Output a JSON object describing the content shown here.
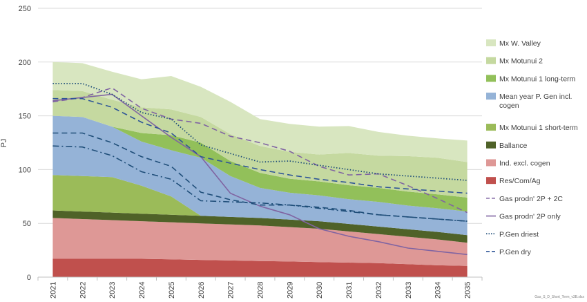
{
  "chart_data": {
    "type": "area",
    "x": [
      2021,
      2022,
      2023,
      2024,
      2025,
      2026,
      2027,
      2028,
      2029,
      2030,
      2031,
      2032,
      2033,
      2034,
      2035
    ],
    "xlabels": [
      "2021",
      "2022",
      "2023",
      "2024",
      "2025",
      "2026",
      "2027",
      "2028",
      "2029",
      "2030",
      "2031",
      "2032",
      "2033",
      "2034",
      "2035"
    ],
    "ylabel": "PJ",
    "ylim": [
      0,
      250
    ],
    "yticks": [
      "0",
      "50",
      "100",
      "150",
      "200",
      "250"
    ],
    "grid": "horizontal",
    "legend_position": "right",
    "stacked_series": [
      {
        "name": "Res/Com/Ag",
        "color": "#c0504d",
        "values": [
          17,
          17,
          17,
          17,
          16.5,
          16,
          15.5,
          15,
          14.5,
          14,
          13.5,
          13,
          12,
          11,
          10.5
        ]
      },
      {
        "name": "Ind. excl. cogen",
        "color": "#de9896",
        "values": [
          38,
          37,
          36,
          35,
          34.5,
          34,
          33.5,
          33,
          32,
          31,
          29,
          27,
          25.5,
          24,
          21.5
        ]
      },
      {
        "name": "Ballance",
        "color": "#4f6228",
        "values": [
          7,
          7,
          7,
          7,
          7,
          7,
          7,
          7,
          7,
          7,
          7,
          7,
          7,
          7,
          7
        ]
      },
      {
        "name": "Mx Motunui 1 short-term",
        "color": "#9bbb59",
        "values": [
          33,
          33,
          33,
          26,
          17,
          0,
          0,
          0,
          0,
          0,
          0,
          0,
          0,
          0,
          0
        ]
      },
      {
        "name": "Mean year P. Gen incl. cogen",
        "color": "#95b3d7",
        "values": [
          55,
          55,
          47,
          41,
          43,
          54,
          38,
          28,
          25,
          24,
          23,
          23,
          22,
          22,
          22
        ]
      },
      {
        "name": "Mx Motunui 1 long-term",
        "color": "#92c05a",
        "values": [
          0,
          0,
          0,
          8,
          14,
          14,
          14,
          14,
          13,
          13,
          13,
          13,
          13,
          13,
          13
        ]
      },
      {
        "name": "Mx Motunui 2",
        "color": "#c5d9a0",
        "values": [
          24,
          24,
          25,
          24,
          24,
          24,
          25,
          25,
          25,
          25,
          30,
          30,
          33,
          34,
          33
        ]
      },
      {
        "name": "Mx W. Valley",
        "color": "#d8e6c0",
        "values": [
          26,
          26,
          26,
          26,
          31,
          28,
          30,
          25,
          26,
          26,
          25,
          22,
          19,
          18,
          20
        ]
      }
    ],
    "line_series": [
      {
        "name": "Gas prodn' 2P + 2C",
        "color": "#8064a2",
        "style": "dashed",
        "values": [
          163,
          167,
          176,
          157,
          147,
          143,
          131,
          125,
          117,
          103,
          95,
          96,
          85,
          73,
          60
        ]
      },
      {
        "name": "Gas prodn' 2P only",
        "color": "#8064a2",
        "style": "solid",
        "values": [
          164,
          167,
          170,
          150,
          130,
          112,
          78,
          66,
          58,
          45,
          38,
          33,
          27,
          24,
          21
        ]
      },
      {
        "name": "P.Gen driest",
        "color": "#1f4e79",
        "style": "dotted",
        "values": [
          180,
          180,
          170,
          153,
          147,
          123,
          115,
          107,
          108,
          104,
          100,
          96,
          94,
          92,
          90
        ]
      },
      {
        "name": "P.Gen dry",
        "color": "#2e5597",
        "style": "dashed",
        "values": [
          166,
          166,
          158,
          144,
          134,
          112,
          106,
          100,
          95,
          91,
          88,
          84,
          82,
          80,
          78
        ]
      },
      {
        "name": "",
        "color": "#1f4e79",
        "style": "dashed",
        "values": [
          134,
          134,
          125,
          112,
          103,
          79,
          72,
          67,
          67,
          65,
          62,
          58,
          56,
          54,
          52
        ]
      },
      {
        "name": "",
        "color": "#1f4e79",
        "style": "dashdot",
        "values": [
          122,
          121,
          113,
          98,
          91,
          71,
          70,
          69,
          67,
          64,
          61,
          58,
          56,
          54,
          52
        ]
      }
    ],
    "legend_entries": [
      {
        "label": "Mx W. Valley",
        "kind": "box",
        "color": "#d8e6c0"
      },
      {
        "label": "Mx Motunui 2",
        "kind": "box",
        "color": "#c5d9a0"
      },
      {
        "label": "Mx Motunui 1 long-term",
        "kind": "box",
        "color": "#92c05a"
      },
      {
        "label": "Mean year P. Gen incl.",
        "label2": "cogen",
        "kind": "box",
        "color": "#95b3d7"
      },
      {
        "label": "Mx Motunui 1 short-term",
        "kind": "box",
        "color": "#9bbb59"
      },
      {
        "label": "Ballance",
        "kind": "box",
        "color": "#4f6228"
      },
      {
        "label": "Ind. excl. cogen",
        "kind": "box",
        "color": "#de9896"
      },
      {
        "label": "Res/Com/Ag",
        "kind": "box",
        "color": "#c0504d"
      },
      {
        "label": "Gas prodn' 2P + 2C",
        "kind": "line",
        "style": "dashed",
        "color": "#8064a2"
      },
      {
        "label": "Gas prodn' 2P only",
        "kind": "line",
        "style": "solid",
        "color": "#8064a2"
      },
      {
        "label": "P.Gen driest",
        "kind": "line",
        "style": "dotted",
        "color": "#1f4e79"
      },
      {
        "label": "P.Gen dry",
        "kind": "line",
        "style": "dashed",
        "color": "#2e5597"
      }
    ],
    "footnote": "Gas_S_D_Short_Term_v3B.xlsx"
  }
}
